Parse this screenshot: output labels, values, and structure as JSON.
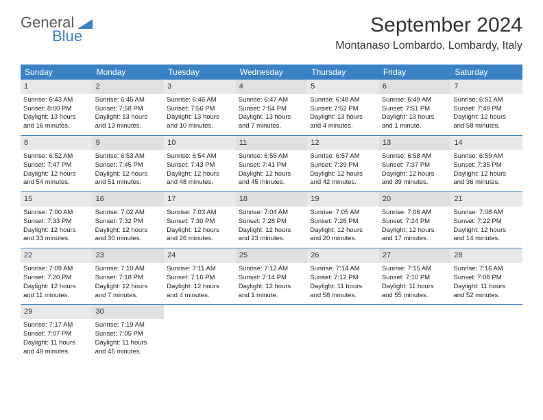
{
  "logo": {
    "main": "General",
    "sub": "Blue"
  },
  "title": "September 2024",
  "location": "Montanaso Lombardo, Lombardy, Italy",
  "day_names": [
    "Sunday",
    "Monday",
    "Tuesday",
    "Wednesday",
    "Thursday",
    "Friday",
    "Saturday"
  ],
  "colors": {
    "brand_blue": "#3b82c4",
    "header_gray": "#e8e8e8",
    "text": "#222222",
    "bg": "#ffffff"
  },
  "weeks": [
    [
      {
        "n": "1",
        "sr": "Sunrise: 6:43 AM",
        "ss": "Sunset: 8:00 PM",
        "d1": "Daylight: 13 hours",
        "d2": "and 16 minutes."
      },
      {
        "n": "2",
        "sr": "Sunrise: 6:45 AM",
        "ss": "Sunset: 7:58 PM",
        "d1": "Daylight: 13 hours",
        "d2": "and 13 minutes."
      },
      {
        "n": "3",
        "sr": "Sunrise: 6:46 AM",
        "ss": "Sunset: 7:56 PM",
        "d1": "Daylight: 13 hours",
        "d2": "and 10 minutes."
      },
      {
        "n": "4",
        "sr": "Sunrise: 6:47 AM",
        "ss": "Sunset: 7:54 PM",
        "d1": "Daylight: 13 hours",
        "d2": "and 7 minutes."
      },
      {
        "n": "5",
        "sr": "Sunrise: 6:48 AM",
        "ss": "Sunset: 7:52 PM",
        "d1": "Daylight: 13 hours",
        "d2": "and 4 minutes."
      },
      {
        "n": "6",
        "sr": "Sunrise: 6:49 AM",
        "ss": "Sunset: 7:51 PM",
        "d1": "Daylight: 13 hours",
        "d2": "and 1 minute."
      },
      {
        "n": "7",
        "sr": "Sunrise: 6:51 AM",
        "ss": "Sunset: 7:49 PM",
        "d1": "Daylight: 12 hours",
        "d2": "and 58 minutes."
      }
    ],
    [
      {
        "n": "8",
        "sr": "Sunrise: 6:52 AM",
        "ss": "Sunset: 7:47 PM",
        "d1": "Daylight: 12 hours",
        "d2": "and 54 minutes."
      },
      {
        "n": "9",
        "sr": "Sunrise: 6:53 AM",
        "ss": "Sunset: 7:45 PM",
        "d1": "Daylight: 12 hours",
        "d2": "and 51 minutes."
      },
      {
        "n": "10",
        "sr": "Sunrise: 6:54 AM",
        "ss": "Sunset: 7:43 PM",
        "d1": "Daylight: 12 hours",
        "d2": "and 48 minutes."
      },
      {
        "n": "11",
        "sr": "Sunrise: 6:55 AM",
        "ss": "Sunset: 7:41 PM",
        "d1": "Daylight: 12 hours",
        "d2": "and 45 minutes."
      },
      {
        "n": "12",
        "sr": "Sunrise: 6:57 AM",
        "ss": "Sunset: 7:39 PM",
        "d1": "Daylight: 12 hours",
        "d2": "and 42 minutes."
      },
      {
        "n": "13",
        "sr": "Sunrise: 6:58 AM",
        "ss": "Sunset: 7:37 PM",
        "d1": "Daylight: 12 hours",
        "d2": "and 39 minutes."
      },
      {
        "n": "14",
        "sr": "Sunrise: 6:59 AM",
        "ss": "Sunset: 7:35 PM",
        "d1": "Daylight: 12 hours",
        "d2": "and 36 minutes."
      }
    ],
    [
      {
        "n": "15",
        "sr": "Sunrise: 7:00 AM",
        "ss": "Sunset: 7:33 PM",
        "d1": "Daylight: 12 hours",
        "d2": "and 33 minutes."
      },
      {
        "n": "16",
        "sr": "Sunrise: 7:02 AM",
        "ss": "Sunset: 7:32 PM",
        "d1": "Daylight: 12 hours",
        "d2": "and 30 minutes."
      },
      {
        "n": "17",
        "sr": "Sunrise: 7:03 AM",
        "ss": "Sunset: 7:30 PM",
        "d1": "Daylight: 12 hours",
        "d2": "and 26 minutes."
      },
      {
        "n": "18",
        "sr": "Sunrise: 7:04 AM",
        "ss": "Sunset: 7:28 PM",
        "d1": "Daylight: 12 hours",
        "d2": "and 23 minutes."
      },
      {
        "n": "19",
        "sr": "Sunrise: 7:05 AM",
        "ss": "Sunset: 7:26 PM",
        "d1": "Daylight: 12 hours",
        "d2": "and 20 minutes."
      },
      {
        "n": "20",
        "sr": "Sunrise: 7:06 AM",
        "ss": "Sunset: 7:24 PM",
        "d1": "Daylight: 12 hours",
        "d2": "and 17 minutes."
      },
      {
        "n": "21",
        "sr": "Sunrise: 7:08 AM",
        "ss": "Sunset: 7:22 PM",
        "d1": "Daylight: 12 hours",
        "d2": "and 14 minutes."
      }
    ],
    [
      {
        "n": "22",
        "sr": "Sunrise: 7:09 AM",
        "ss": "Sunset: 7:20 PM",
        "d1": "Daylight: 12 hours",
        "d2": "and 11 minutes."
      },
      {
        "n": "23",
        "sr": "Sunrise: 7:10 AM",
        "ss": "Sunset: 7:18 PM",
        "d1": "Daylight: 12 hours",
        "d2": "and 7 minutes."
      },
      {
        "n": "24",
        "sr": "Sunrise: 7:11 AM",
        "ss": "Sunset: 7:16 PM",
        "d1": "Daylight: 12 hours",
        "d2": "and 4 minutes."
      },
      {
        "n": "25",
        "sr": "Sunrise: 7:12 AM",
        "ss": "Sunset: 7:14 PM",
        "d1": "Daylight: 12 hours",
        "d2": "and 1 minute."
      },
      {
        "n": "26",
        "sr": "Sunrise: 7:14 AM",
        "ss": "Sunset: 7:12 PM",
        "d1": "Daylight: 11 hours",
        "d2": "and 58 minutes."
      },
      {
        "n": "27",
        "sr": "Sunrise: 7:15 AM",
        "ss": "Sunset: 7:10 PM",
        "d1": "Daylight: 11 hours",
        "d2": "and 55 minutes."
      },
      {
        "n": "28",
        "sr": "Sunrise: 7:16 AM",
        "ss": "Sunset: 7:08 PM",
        "d1": "Daylight: 11 hours",
        "d2": "and 52 minutes."
      }
    ],
    [
      {
        "n": "29",
        "sr": "Sunrise: 7:17 AM",
        "ss": "Sunset: 7:07 PM",
        "d1": "Daylight: 11 hours",
        "d2": "and 49 minutes."
      },
      {
        "n": "30",
        "sr": "Sunrise: 7:19 AM",
        "ss": "Sunset: 7:05 PM",
        "d1": "Daylight: 11 hours",
        "d2": "and 45 minutes."
      },
      null,
      null,
      null,
      null,
      null
    ]
  ]
}
